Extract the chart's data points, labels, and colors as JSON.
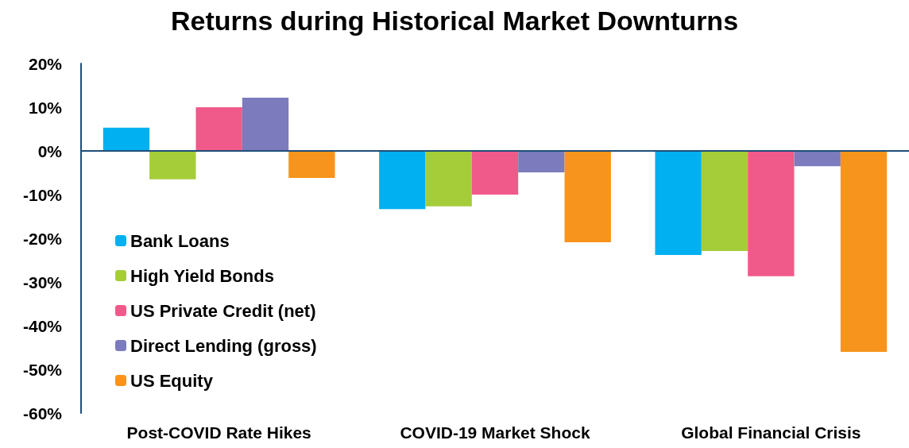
{
  "chart_data": {
    "type": "bar",
    "title": "Returns during Historical Market Downturns",
    "categories": [
      "Post-COVID Rate Hikes",
      "COVID-19 Market Shock",
      "Global Financial Crisis"
    ],
    "series": [
      {
        "name": "Bank Loans",
        "color": "#00b0f0",
        "values": [
          5.3,
          -13.3,
          -23.8
        ]
      },
      {
        "name": "High Yield Bonds",
        "color": "#a5cd39",
        "values": [
          -6.5,
          -12.7,
          -22.9
        ]
      },
      {
        "name": "US Private Credit (net)",
        "color": "#f05a8a",
        "values": [
          10,
          -10,
          -28.7
        ]
      },
      {
        "name": "Direct Lending (gross)",
        "color": "#7b7bbd",
        "values": [
          12.2,
          -4.9,
          -3.5
        ]
      },
      {
        "name": "US Equity",
        "color": "#f7941d",
        "values": [
          -6.2,
          -20.9,
          -46
        ]
      }
    ],
    "ylim": [
      -60,
      20
    ],
    "yticks": [
      {
        "value": -60,
        "label": "-60%"
      },
      {
        "value": -50,
        "label": "-50%"
      },
      {
        "value": -40,
        "label": "-40%"
      },
      {
        "value": -30,
        "label": "-30%"
      },
      {
        "value": -20,
        "label": "-20%"
      },
      {
        "value": -10,
        "label": "-10%"
      },
      {
        "value": 0,
        "label": "0%"
      },
      {
        "value": 10,
        "label": "10%"
      },
      {
        "value": 20,
        "label": "20%"
      }
    ],
    "ref_lines": [
      {
        "axis": "y",
        "value": 0,
        "color": "#1f4e79"
      }
    ],
    "grid": false,
    "legend": "bottom left"
  }
}
